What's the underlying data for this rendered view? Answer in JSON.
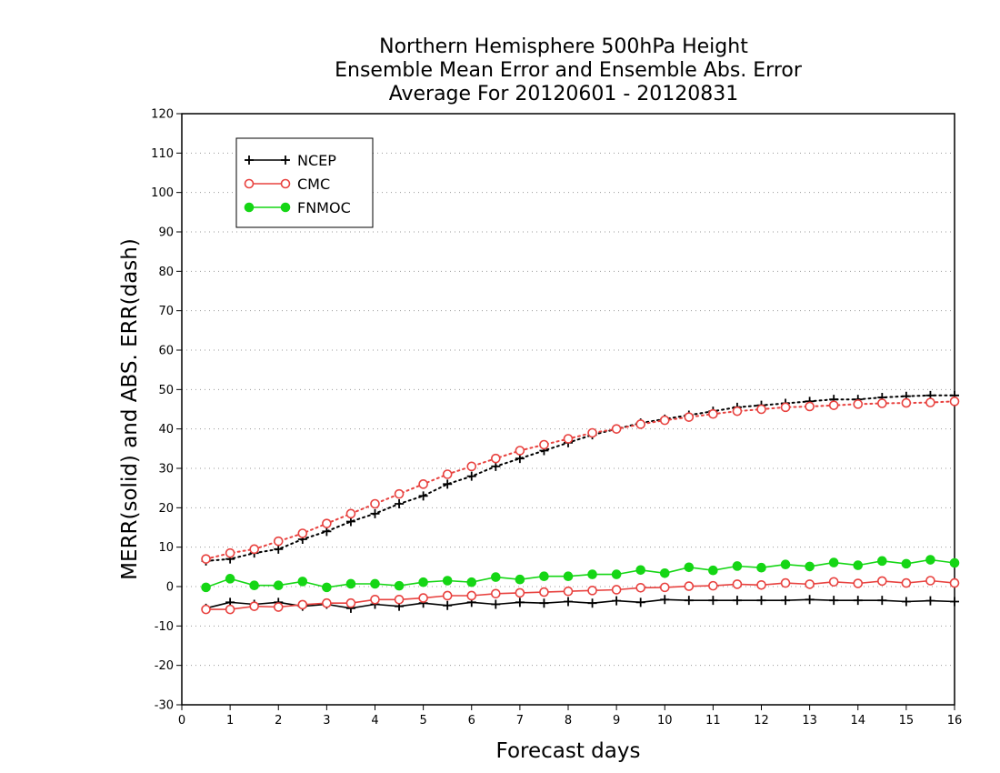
{
  "chart_data": {
    "type": "line",
    "title": [
      "Northern Hemisphere 500hPa Height",
      "Ensemble Mean Error and Ensemble Abs. Error",
      "Average For 20120601 - 20120831"
    ],
    "xlabel": "Forecast days",
    "ylabel": "MERR(solid) and ABS. ERR(dash)",
    "xlim": [
      0,
      16
    ],
    "ylim": [
      -30,
      120
    ],
    "xticks": [
      "0",
      "1",
      "2",
      "3",
      "4",
      "5",
      "6",
      "7",
      "8",
      "9",
      "10",
      "11",
      "12",
      "13",
      "14",
      "15",
      "16"
    ],
    "yticks": [
      "-30",
      "-20",
      "-10",
      "0",
      "10",
      "20",
      "30",
      "40",
      "50",
      "60",
      "70",
      "80",
      "90",
      "100",
      "110",
      "120"
    ],
    "grid": true,
    "legend_position": "top-left",
    "x": [
      0.5,
      1,
      1.5,
      2,
      2.5,
      3,
      3.5,
      4,
      4.5,
      5,
      5.5,
      6,
      6.5,
      7,
      7.5,
      8,
      8.5,
      9,
      9.5,
      10,
      10.5,
      11,
      11.5,
      12,
      12.5,
      13,
      13.5,
      14,
      14.5,
      15,
      15.5,
      16
    ],
    "series": [
      {
        "name": "NCEP",
        "color": "#000000",
        "marker": "plus",
        "merr": [
          -5.5,
          -4,
          -4.5,
          -4,
          -5,
          -4.5,
          -5.5,
          -4.5,
          -5,
          -4.2,
          -4.8,
          -4,
          -4.5,
          -4,
          -4.2,
          -3.8,
          -4.2,
          -3.6,
          -4,
          -3.3,
          -3.5,
          -3.5,
          -3.5,
          -3.5,
          -3.5,
          -3.3,
          -3.5,
          -3.5,
          -3.5,
          -3.8,
          -3.6,
          -3.8
        ],
        "abs_err": [
          6.5,
          7,
          8.5,
          9.5,
          12,
          14,
          16.5,
          18.5,
          21,
          23,
          26,
          28,
          30.5,
          32.5,
          34.5,
          36.5,
          38.5,
          40,
          41.5,
          42.5,
          43.5,
          44.5,
          45.5,
          46,
          46.5,
          47,
          47.5,
          47.5,
          48,
          48.3,
          48.5,
          48.5
        ]
      },
      {
        "name": "CMC",
        "color": "#e8423f",
        "marker": "circle-open",
        "merr": [
          -5.8,
          -5.8,
          -5,
          -5.2,
          -4.6,
          -4.2,
          -4.2,
          -3.3,
          -3.3,
          -2.9,
          -2.3,
          -2.3,
          -1.8,
          -1.6,
          -1.4,
          -1.2,
          -1,
          -0.8,
          -0.3,
          -0.2,
          0.1,
          0.2,
          0.6,
          0.4,
          0.9,
          0.6,
          1.2,
          0.8,
          1.4,
          0.9,
          1.5,
          0.9
        ],
        "abs_err": [
          7,
          8.5,
          9.5,
          11.5,
          13.5,
          16,
          18.5,
          21,
          23.5,
          26,
          28.5,
          30.5,
          32.5,
          34.5,
          36,
          37.5,
          39,
          40,
          41.2,
          42.2,
          43,
          43.8,
          44.5,
          45,
          45.5,
          45.7,
          46,
          46.3,
          46.5,
          46.6,
          46.7,
          47
        ]
      },
      {
        "name": "FNMOC",
        "color": "#15d615",
        "marker": "circle-filled",
        "merr": [
          -0.2,
          2,
          0.3,
          0.3,
          1.3,
          -0.2,
          0.7,
          0.7,
          0.2,
          1.1,
          1.5,
          1.1,
          2.4,
          1.8,
          2.6,
          2.6,
          3.1,
          3.1,
          4.2,
          3.4,
          4.9,
          4.1,
          5.2,
          4.8,
          5.6,
          5.1,
          6.1,
          5.4,
          6.5,
          5.8,
          6.8,
          6
        ]
      }
    ]
  }
}
